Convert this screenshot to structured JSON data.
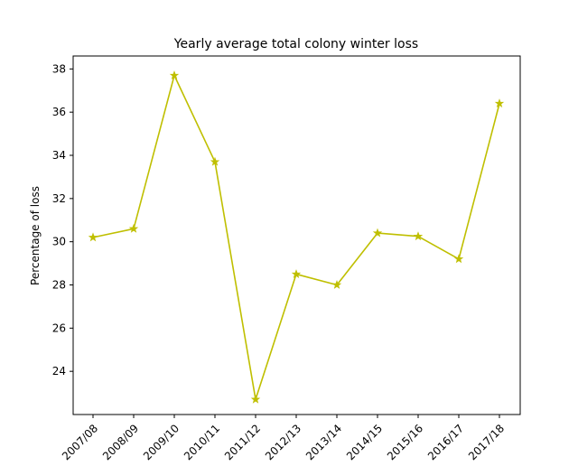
{
  "chart_data": {
    "type": "line",
    "title": "Yearly average total colony winter loss",
    "xlabel": "",
    "ylabel": "Percentage of loss",
    "categories": [
      "2007/08",
      "2008/09",
      "2009/10",
      "2010/11",
      "2011/12",
      "2012/13",
      "2013/14",
      "2014/15",
      "2015/16",
      "2016/17",
      "2017/18"
    ],
    "series": [
      {
        "values": [
          30.2,
          30.6,
          37.7,
          33.7,
          22.7,
          28.5,
          28.0,
          30.4,
          30.25,
          29.2,
          36.4
        ],
        "color": "#bfbf00",
        "marker": "star"
      }
    ],
    "ylim": [
      22.0,
      38.6
    ],
    "yticks": [
      24,
      26,
      28,
      30,
      32,
      34,
      36,
      38
    ],
    "grid": false,
    "legend": "none"
  }
}
